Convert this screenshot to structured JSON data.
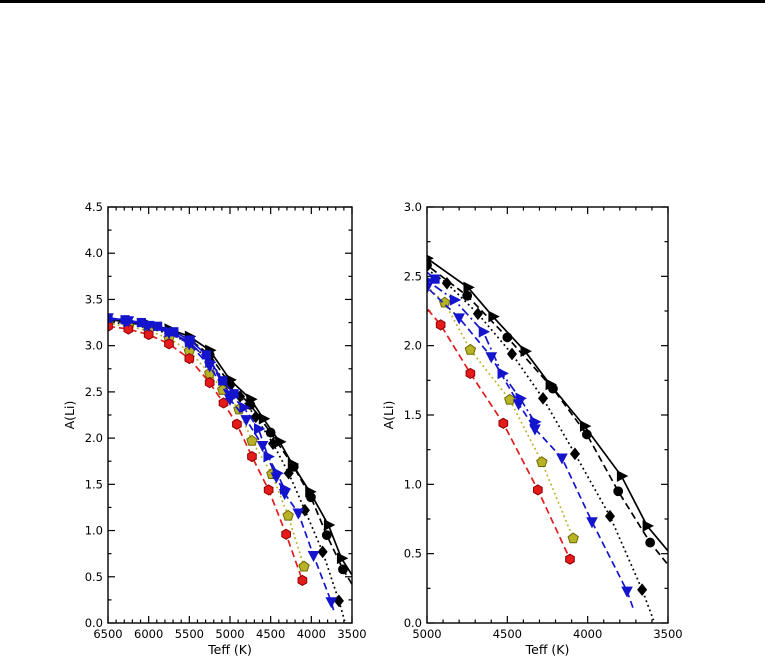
{
  "page": {
    "background": "#ffffff",
    "top_rule_color": "#000000"
  },
  "chart_data": {
    "type": "line",
    "title": "",
    "grid": false,
    "legend": "none",
    "panels": [
      {
        "name": "left-panel",
        "xlabel": "Teff (K)",
        "ylabel": "A(Li)",
        "x_range": [
          6500,
          3500
        ],
        "x_axis_reversed": true,
        "y_range": [
          0.0,
          4.5
        ],
        "x_major_ticks": [
          6500,
          6000,
          5500,
          5000,
          4500,
          4000,
          3500
        ],
        "x_minor_step": 100,
        "y_major_ticks": [
          0.0,
          0.5,
          1.0,
          1.5,
          2.0,
          2.5,
          3.0,
          3.5,
          4.0,
          4.5
        ],
        "y_minor_step": 0.25
      },
      {
        "name": "right-panel",
        "xlabel": "Teff (K)",
        "ylabel": "A(Li)",
        "x_range": [
          5000,
          3500
        ],
        "x_axis_reversed": true,
        "y_range": [
          0.0,
          3.0
        ],
        "x_major_ticks": [
          5000,
          4500,
          4000,
          3500
        ],
        "x_minor_step": 100,
        "y_major_ticks": [
          0.0,
          0.5,
          1.0,
          1.5,
          2.0,
          2.5,
          3.0
        ],
        "y_minor_step": 0.25
      }
    ],
    "series": [
      {
        "name": "black-dotted-diamond",
        "color": "#000000",
        "edge_color": "#000000",
        "line": "dotted",
        "marker": "diamond",
        "points": [
          [
            6500,
            3.26
          ],
          [
            6250,
            3.23
          ],
          [
            6000,
            3.19
          ],
          [
            5750,
            3.13
          ],
          [
            5500,
            3.03
          ],
          [
            5250,
            2.84
          ],
          [
            5060,
            2.6
          ],
          [
            4876,
            2.45
          ],
          [
            4683,
            2.23
          ],
          [
            4471,
            1.94
          ],
          [
            4278,
            1.62
          ],
          [
            4079,
            1.22
          ],
          [
            3861,
            0.77
          ],
          [
            3661,
            0.24
          ]
        ],
        "tail": [
          [
            3590,
            0.02
          ]
        ]
      },
      {
        "name": "black-dashed-circle",
        "color": "#000000",
        "edge_color": "#000000",
        "line": "dashed",
        "marker": "circle",
        "points": [
          [
            6500,
            3.27
          ],
          [
            6250,
            3.25
          ],
          [
            6000,
            3.21
          ],
          [
            5750,
            3.16
          ],
          [
            5500,
            3.07
          ],
          [
            5250,
            2.9
          ],
          [
            5000,
            2.58
          ],
          [
            4750,
            2.36
          ],
          [
            4500,
            2.06
          ],
          [
            4216,
            1.69
          ],
          [
            4005,
            1.36
          ],
          [
            3810,
            0.95
          ],
          [
            3611,
            0.58
          ]
        ],
        "tail": [
          [
            3500,
            0.42
          ]
        ]
      },
      {
        "name": "black-solid-triangle-right",
        "color": "#000000",
        "edge_color": "#000000",
        "line": "solid",
        "marker": "triangle-right",
        "points": [
          [
            6500,
            3.28
          ],
          [
            6250,
            3.26
          ],
          [
            6000,
            3.23
          ],
          [
            5750,
            3.18
          ],
          [
            5500,
            3.1
          ],
          [
            5250,
            2.95
          ],
          [
            5000,
            2.63
          ],
          [
            4745,
            2.42
          ],
          [
            4590,
            2.21
          ],
          [
            4390,
            1.96
          ],
          [
            4234,
            1.72
          ],
          [
            4020,
            1.42
          ],
          [
            3790,
            1.06
          ],
          [
            3630,
            0.7
          ]
        ],
        "tail": [
          [
            3500,
            0.52
          ]
        ]
      },
      {
        "name": "olive-dotted-pentagon",
        "color": "#b8b226",
        "edge_color": "#6e6a00",
        "line": "dotted",
        "marker": "pentagon",
        "points": [
          [
            6500,
            3.24
          ],
          [
            6250,
            3.21
          ],
          [
            6000,
            3.16
          ],
          [
            5750,
            3.08
          ],
          [
            5500,
            2.94
          ],
          [
            5250,
            2.7
          ],
          [
            5090,
            2.52
          ],
          [
            4890,
            2.31
          ],
          [
            4730,
            1.97
          ],
          [
            4485,
            1.61
          ],
          [
            4285,
            1.16
          ],
          [
            4090,
            0.61
          ]
        ]
      },
      {
        "name": "red-dashed-hexagon",
        "color": "#e31b1b",
        "edge_color": "#8f0000",
        "line": "dashed",
        "marker": "hexagon",
        "points": [
          [
            6500,
            3.21
          ],
          [
            6250,
            3.18
          ],
          [
            6000,
            3.12
          ],
          [
            5750,
            3.02
          ],
          [
            5500,
            2.86
          ],
          [
            5250,
            2.6
          ],
          [
            5080,
            2.38
          ],
          [
            4915,
            2.15
          ],
          [
            4730,
            1.8
          ],
          [
            4525,
            1.44
          ],
          [
            4310,
            0.96
          ],
          [
            4110,
            0.46
          ]
        ]
      },
      {
        "name": "blue-dashed-triangle-down",
        "color": "#1414cc",
        "edge_color": "#1414cc",
        "line": "dashed",
        "marker": "triangle-down",
        "points": [
          [
            6500,
            3.3
          ],
          [
            6250,
            3.27
          ],
          [
            6000,
            3.22
          ],
          [
            5750,
            3.14
          ],
          [
            5500,
            3.02
          ],
          [
            5250,
            2.78
          ],
          [
            5000,
            2.42
          ],
          [
            4800,
            2.2
          ],
          [
            4600,
            1.92
          ],
          [
            4430,
            1.58
          ],
          [
            4328,
            1.4
          ],
          [
            4160,
            1.19
          ],
          [
            3973,
            0.73
          ],
          [
            3755,
            0.23
          ]
        ],
        "tail": [
          [
            3715,
            0.1
          ]
        ]
      },
      {
        "name": "blue-dashdot-triangle-right",
        "color": "#1414cc",
        "edge_color": "#1414cc",
        "line": "dashdot",
        "marker": "triangle-right",
        "points": [
          [
            6500,
            3.29
          ],
          [
            6250,
            3.26
          ],
          [
            6000,
            3.22
          ],
          [
            5750,
            3.15
          ],
          [
            5500,
            3.04
          ],
          [
            5250,
            2.82
          ],
          [
            5000,
            2.47
          ],
          [
            4830,
            2.33
          ],
          [
            4650,
            2.1
          ],
          [
            4533,
            1.8
          ],
          [
            4421,
            1.62
          ],
          [
            4330,
            1.45
          ]
        ]
      },
      {
        "name": "blue-solid-square",
        "color": "#1414cc",
        "edge_color": "#1414cc",
        "line": "solid",
        "marker": "square",
        "points": [
          [
            6500,
            3.3
          ],
          [
            6290,
            3.28
          ],
          [
            6090,
            3.25
          ],
          [
            5890,
            3.21
          ],
          [
            5690,
            3.15
          ],
          [
            5490,
            3.06
          ],
          [
            5290,
            2.9
          ],
          [
            5090,
            2.62
          ],
          [
            4950,
            2.48
          ]
        ]
      }
    ]
  }
}
